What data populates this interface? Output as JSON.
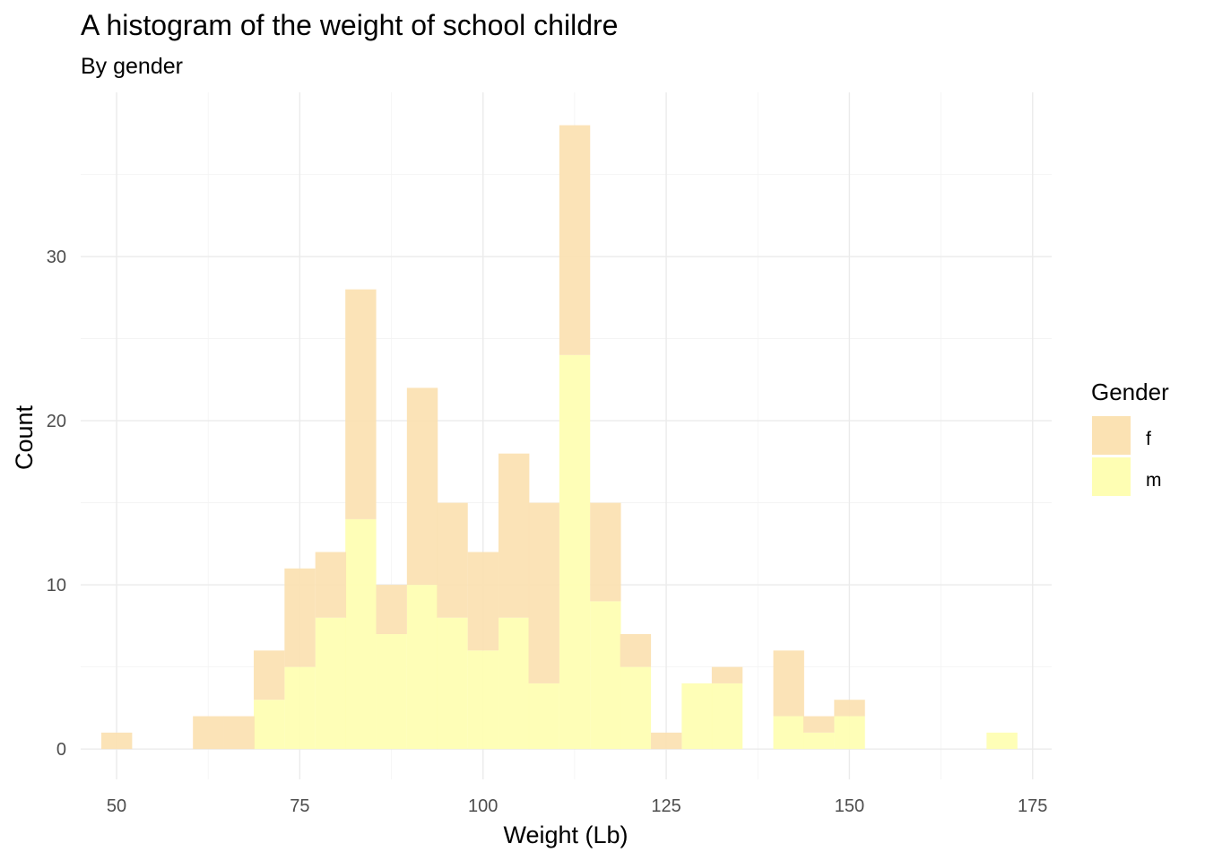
{
  "chart_data": {
    "type": "bar",
    "title": "A histogram of the weight of school childre",
    "subtitle": "By gender",
    "xlabel": "Weight (Lb)",
    "ylabel": "Count",
    "xlim": [
      45.1,
      177.6
    ],
    "ylim": [
      -1.85,
      40.0
    ],
    "x_ticks": [
      50,
      75,
      100,
      125,
      150,
      175
    ],
    "y_ticks": [
      0,
      10,
      20,
      30
    ],
    "bin_width": 4.17,
    "stacked": true,
    "grid": true,
    "legend": {
      "title": "Gender",
      "position": "right"
    },
    "series": [
      {
        "name": "f",
        "color": "#FBE2B3",
        "bins": [
          {
            "x": 50.0,
            "count": 1
          },
          {
            "x": 62.5,
            "count": 2
          },
          {
            "x": 66.7,
            "count": 2
          },
          {
            "x": 70.8,
            "count": 3
          },
          {
            "x": 75.0,
            "count": 6
          },
          {
            "x": 79.2,
            "count": 4
          },
          {
            "x": 83.3,
            "count": 14
          },
          {
            "x": 87.5,
            "count": 3
          },
          {
            "x": 91.7,
            "count": 12
          },
          {
            "x": 95.8,
            "count": 7
          },
          {
            "x": 100.0,
            "count": 6
          },
          {
            "x": 104.2,
            "count": 10
          },
          {
            "x": 108.3,
            "count": 11
          },
          {
            "x": 112.5,
            "count": 14
          },
          {
            "x": 116.7,
            "count": 6
          },
          {
            "x": 120.8,
            "count": 2
          },
          {
            "x": 125.0,
            "count": 1
          },
          {
            "x": 133.3,
            "count": 1
          },
          {
            "x": 141.7,
            "count": 4
          },
          {
            "x": 145.8,
            "count": 1
          },
          {
            "x": 150.0,
            "count": 1
          }
        ]
      },
      {
        "name": "m",
        "color": "#FEFEB3",
        "bins": [
          {
            "x": 70.8,
            "count": 3
          },
          {
            "x": 75.0,
            "count": 5
          },
          {
            "x": 79.2,
            "count": 8
          },
          {
            "x": 83.3,
            "count": 14
          },
          {
            "x": 87.5,
            "count": 7
          },
          {
            "x": 91.7,
            "count": 10
          },
          {
            "x": 95.8,
            "count": 8
          },
          {
            "x": 100.0,
            "count": 6
          },
          {
            "x": 104.2,
            "count": 8
          },
          {
            "x": 108.3,
            "count": 4
          },
          {
            "x": 112.5,
            "count": 24
          },
          {
            "x": 116.7,
            "count": 9
          },
          {
            "x": 120.8,
            "count": 5
          },
          {
            "x": 129.2,
            "count": 4
          },
          {
            "x": 133.3,
            "count": 4
          },
          {
            "x": 141.7,
            "count": 2
          },
          {
            "x": 145.8,
            "count": 1
          },
          {
            "x": 150.0,
            "count": 2
          },
          {
            "x": 170.8,
            "count": 1
          }
        ]
      }
    ]
  }
}
